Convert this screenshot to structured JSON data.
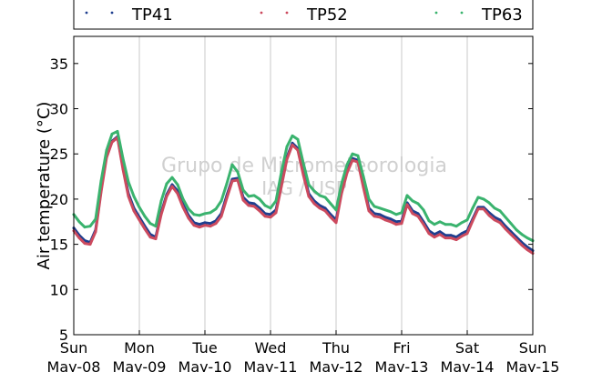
{
  "chart_data": {
    "type": "line",
    "xlabel": "",
    "ylabel": "Air temperature (°C)",
    "ylim": [
      5,
      38
    ],
    "yticks": [
      5,
      10,
      15,
      20,
      25,
      30,
      35
    ],
    "xlim_days": [
      0,
      7
    ],
    "xtick_labels": [
      {
        "day": "Sun",
        "date": "May-08"
      },
      {
        "day": "Mon",
        "date": "May-09"
      },
      {
        "day": "Tue",
        "date": "May-10"
      },
      {
        "day": "Wed",
        "date": "May-11"
      },
      {
        "day": "Thu",
        "date": "May-12"
      },
      {
        "day": "Fri",
        "date": "May-13"
      },
      {
        "day": "Sat",
        "date": "May-14"
      },
      {
        "day": "Sun",
        "date": "May-15"
      }
    ],
    "grid": "vertical",
    "legend_position": "top",
    "watermark": [
      "Grupo de Micrometeorologia",
      "IAG / USP"
    ],
    "x_dates": [
      "May-08 00:00",
      "May-08 02:00",
      "May-08 04:00",
      "May-08 06:00",
      "May-08 08:00",
      "May-08 10:00",
      "May-08 12:00",
      "May-08 14:00",
      "May-08 16:00",
      "May-08 18:00",
      "May-08 20:00",
      "May-08 22:00",
      "May-09 00:00",
      "May-09 02:00",
      "May-09 04:00",
      "May-09 06:00",
      "May-09 08:00",
      "May-09 10:00",
      "May-09 12:00",
      "May-09 14:00",
      "May-09 16:00",
      "May-09 18:00",
      "May-09 20:00",
      "May-09 22:00",
      "May-10 00:00",
      "May-10 02:00",
      "May-10 04:00",
      "May-10 06:00",
      "May-10 08:00",
      "May-10 10:00",
      "May-10 12:00",
      "May-10 14:00",
      "May-10 16:00",
      "May-10 18:00",
      "May-10 20:00",
      "May-10 22:00",
      "May-11 00:00",
      "May-11 02:00",
      "May-11 04:00",
      "May-11 06:00",
      "May-11 08:00",
      "May-11 10:00",
      "May-11 12:00",
      "May-11 14:00",
      "May-11 16:00",
      "May-11 18:00",
      "May-11 20:00",
      "May-11 22:00",
      "May-12 00:00",
      "May-12 02:00",
      "May-12 04:00",
      "May-12 06:00",
      "May-12 08:00",
      "May-12 10:00",
      "May-12 12:00",
      "May-12 14:00",
      "May-12 16:00",
      "May-12 18:00",
      "May-12 20:00",
      "May-12 22:00",
      "May-13 00:00",
      "May-13 02:00",
      "May-13 04:00",
      "May-13 06:00",
      "May-13 08:00",
      "May-13 10:00",
      "May-13 12:00",
      "May-13 14:00",
      "May-13 16:00",
      "May-13 18:00",
      "May-13 20:00",
      "May-13 22:00",
      "May-14 00:00",
      "May-14 02:00",
      "May-14 04:00",
      "May-14 06:00",
      "May-14 08:00",
      "May-14 10:00",
      "May-14 12:00",
      "May-14 14:00",
      "May-14 16:00",
      "May-14 18:00",
      "May-14 20:00",
      "May-14 22:00",
      "May-15 00:00"
    ],
    "series": [
      {
        "name": "TP41",
        "color": "#1f3f8f",
        "values": [
          16.8,
          16.0,
          15.4,
          15.2,
          16.6,
          21.0,
          24.8,
          26.4,
          26.9,
          23.5,
          20.6,
          19.0,
          18.0,
          17.0,
          16.1,
          15.8,
          18.5,
          20.5,
          21.6,
          20.9,
          19.4,
          18.2,
          17.4,
          17.2,
          17.4,
          17.3,
          17.6,
          18.4,
          20.4,
          22.2,
          22.3,
          20.2,
          19.6,
          19.5,
          19.0,
          18.4,
          18.3,
          18.8,
          21.6,
          24.6,
          26.2,
          25.6,
          23.0,
          20.6,
          19.8,
          19.3,
          19.0,
          18.3,
          17.7,
          20.8,
          23.1,
          24.5,
          24.3,
          21.6,
          19.0,
          18.4,
          18.3,
          18.0,
          17.8,
          17.5,
          17.6,
          19.6,
          18.7,
          18.4,
          17.5,
          16.5,
          16.1,
          16.4,
          16.0,
          16.0,
          15.8,
          16.2,
          16.5,
          17.8,
          19.1,
          19.1,
          18.5,
          18.0,
          17.7,
          17.0,
          16.4,
          15.8,
          15.2,
          14.7,
          14.3
        ]
      },
      {
        "name": "TP52",
        "color": "#cc4a5e",
        "values": [
          16.5,
          15.7,
          15.1,
          15.0,
          16.4,
          20.8,
          24.6,
          26.3,
          26.8,
          23.3,
          20.3,
          18.7,
          17.7,
          16.7,
          15.8,
          15.6,
          18.3,
          20.3,
          21.4,
          20.6,
          19.1,
          17.9,
          17.1,
          16.9,
          17.1,
          17.0,
          17.3,
          18.1,
          20.1,
          22.0,
          22.1,
          19.9,
          19.3,
          19.2,
          18.7,
          18.1,
          18.0,
          18.5,
          21.4,
          24.4,
          26.0,
          25.4,
          22.7,
          20.3,
          19.5,
          19.0,
          18.7,
          18.0,
          17.4,
          20.6,
          22.9,
          24.3,
          24.1,
          21.3,
          18.7,
          18.1,
          18.0,
          17.7,
          17.5,
          17.2,
          17.3,
          19.4,
          18.4,
          18.1,
          17.2,
          16.2,
          15.8,
          16.1,
          15.7,
          15.7,
          15.5,
          15.9,
          16.2,
          17.6,
          18.9,
          18.9,
          18.2,
          17.7,
          17.4,
          16.7,
          16.1,
          15.5,
          14.9,
          14.4,
          14.0
        ]
      },
      {
        "name": "TP63",
        "color": "#3ab36e",
        "values": [
          18.3,
          17.5,
          16.9,
          17.0,
          17.8,
          22.0,
          25.4,
          27.2,
          27.5,
          24.5,
          21.9,
          20.3,
          19.1,
          18.1,
          17.3,
          17.0,
          19.8,
          21.7,
          22.4,
          21.6,
          20.0,
          18.9,
          18.3,
          18.2,
          18.4,
          18.5,
          18.9,
          19.8,
          21.7,
          23.8,
          23.0,
          21.0,
          20.3,
          20.4,
          20.0,
          19.3,
          19.0,
          19.8,
          23.0,
          25.8,
          27.0,
          26.6,
          24.0,
          21.6,
          20.9,
          20.4,
          20.2,
          19.5,
          18.8,
          21.7,
          23.8,
          25.0,
          24.8,
          22.5,
          20.0,
          19.2,
          19.0,
          18.8,
          18.6,
          18.3,
          18.5,
          20.4,
          19.8,
          19.5,
          18.8,
          17.6,
          17.2,
          17.5,
          17.2,
          17.2,
          17.0,
          17.4,
          17.7,
          19.0,
          20.2,
          20.0,
          19.6,
          19.0,
          18.7,
          18.0,
          17.3,
          16.6,
          16.1,
          15.7,
          15.4
        ]
      }
    ]
  }
}
